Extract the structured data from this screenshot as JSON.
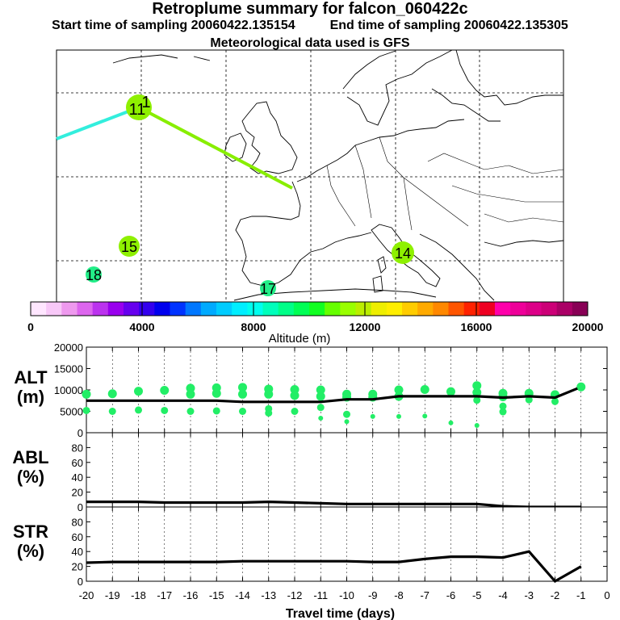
{
  "header": {
    "title": "Retroplume summary for falcon_060422c",
    "start_label": "Start time of sampling 20060422.135154",
    "end_label": "End time of sampling 20060422.135305",
    "met_label": "Meteorological data used is GFS"
  },
  "colorbar": {
    "xlabel": "Altitude (m)",
    "ticks": [
      "0",
      "4000",
      "8000",
      "12000",
      "16000",
      "20000"
    ],
    "colors": [
      "#ffe6ff",
      "#f8c8f8",
      "#ee99ee",
      "#dd66ee",
      "#bb33ee",
      "#9900ee",
      "#6600ee",
      "#3300ee",
      "#0000ee",
      "#0033ff",
      "#0077ff",
      "#00aaff",
      "#00ccff",
      "#00eeff",
      "#00ffee",
      "#00ffbb",
      "#00ff88",
      "#00ff55",
      "#11ff22",
      "#66ff00",
      "#99ff00",
      "#bbee00",
      "#eeee00",
      "#ffee00",
      "#ffcc00",
      "#ffaa00",
      "#ff8800",
      "#ff5500",
      "#ff2200",
      "#ee0022",
      "#ff00aa",
      "#ee0099",
      "#dd0088",
      "#cc0077",
      "#aa0066",
      "#880055"
    ]
  },
  "map": {
    "plume_labels": [
      {
        "label": "11",
        "color": "#8ef000"
      },
      {
        "label": "1",
        "color": "#8ef000"
      },
      {
        "label": "14",
        "color": "#8ef000"
      },
      {
        "label": "15",
        "color": "#8ef000"
      },
      {
        "label": "17",
        "color": "#22ee88"
      },
      {
        "label": "18",
        "color": "#22ee88"
      }
    ],
    "track_colors": [
      "#33eedd",
      "#88ee00"
    ]
  },
  "chart_data": [
    {
      "type": "scatter",
      "panel": "ALT",
      "ylabel": "ALT\n(m)",
      "ylim": [
        0,
        20000
      ],
      "yticks": [
        "0",
        "5000",
        "10000",
        "15000",
        "20000"
      ],
      "xlim": [
        -20,
        0
      ],
      "marker_color": "#22ee66",
      "median_line": {
        "x": [
          -20,
          -19,
          -18,
          -17,
          -16,
          -15,
          -14,
          -13,
          -12,
          -11,
          -10,
          -9,
          -8,
          -7,
          -6,
          -5,
          -4,
          -3,
          -2,
          -1
        ],
        "y": [
          7500,
          7500,
          7500,
          7500,
          7500,
          7500,
          7200,
          7200,
          7200,
          7200,
          7800,
          7800,
          8500,
          8500,
          8500,
          8500,
          8200,
          8500,
          8200,
          10700
        ]
      },
      "scatter_points": [
        {
          "x": -20,
          "y": 9000
        },
        {
          "x": -20,
          "y": 5200
        },
        {
          "x": -19,
          "y": 9100
        },
        {
          "x": -19,
          "y": 5000
        },
        {
          "x": -18,
          "y": 9700
        },
        {
          "x": -18,
          "y": 5300
        },
        {
          "x": -17,
          "y": 9900
        },
        {
          "x": -17,
          "y": 5200
        },
        {
          "x": -16,
          "y": 10400
        },
        {
          "x": -16,
          "y": 9000
        },
        {
          "x": -16,
          "y": 5000
        },
        {
          "x": -15,
          "y": 10500
        },
        {
          "x": -15,
          "y": 9200
        },
        {
          "x": -15,
          "y": 5100
        },
        {
          "x": -14,
          "y": 10600
        },
        {
          "x": -14,
          "y": 9000
        },
        {
          "x": -14,
          "y": 5000
        },
        {
          "x": -13,
          "y": 10200
        },
        {
          "x": -13,
          "y": 9000
        },
        {
          "x": -13,
          "y": 5600
        },
        {
          "x": -13,
          "y": 4600
        },
        {
          "x": -12,
          "y": 10100
        },
        {
          "x": -12,
          "y": 8700
        },
        {
          "x": -12,
          "y": 5000
        },
        {
          "x": -11,
          "y": 10000
        },
        {
          "x": -11,
          "y": 8500
        },
        {
          "x": -11,
          "y": 5900
        },
        {
          "x": -11,
          "y": 3400
        },
        {
          "x": -10,
          "y": 9000
        },
        {
          "x": -10,
          "y": 8300
        },
        {
          "x": -10,
          "y": 4300
        },
        {
          "x": -10,
          "y": 2600
        },
        {
          "x": -9,
          "y": 9000
        },
        {
          "x": -9,
          "y": 8300
        },
        {
          "x": -9,
          "y": 3800
        },
        {
          "x": -8,
          "y": 10000
        },
        {
          "x": -8,
          "y": 8500
        },
        {
          "x": -8,
          "y": 3800
        },
        {
          "x": -7,
          "y": 10100
        },
        {
          "x": -7,
          "y": 3900
        },
        {
          "x": -6,
          "y": 9600
        },
        {
          "x": -6,
          "y": 2300
        },
        {
          "x": -5,
          "y": 11000
        },
        {
          "x": -5,
          "y": 9400
        },
        {
          "x": -5,
          "y": 7600
        },
        {
          "x": -5,
          "y": 1700
        },
        {
          "x": -4,
          "y": 9200
        },
        {
          "x": -4,
          "y": 8400
        },
        {
          "x": -4,
          "y": 6200
        },
        {
          "x": -4,
          "y": 4900
        },
        {
          "x": -3,
          "y": 9200
        },
        {
          "x": -3,
          "y": 7700
        },
        {
          "x": -2,
          "y": 8900
        },
        {
          "x": -2,
          "y": 7300
        },
        {
          "x": -1,
          "y": 10700
        }
      ]
    },
    {
      "type": "line",
      "panel": "ABL",
      "ylabel": "ABL\n(%)",
      "ylim": [
        0,
        100
      ],
      "yticks": [
        "0",
        "20",
        "40",
        "60",
        "80"
      ],
      "xlim": [
        -20,
        0
      ],
      "x": [
        -20,
        -19,
        -18,
        -17,
        -16,
        -15,
        -14,
        -13,
        -12,
        -11,
        -10,
        -9,
        -8,
        -7,
        -6,
        -5,
        -4,
        -3,
        -2,
        -1
      ],
      "y": [
        7,
        7,
        7,
        6,
        6,
        6,
        6,
        7,
        6,
        5,
        4,
        4,
        4,
        4,
        4,
        4,
        1,
        0,
        0,
        0
      ]
    },
    {
      "type": "line",
      "panel": "STR",
      "ylabel": "STR\n(%)",
      "ylim": [
        0,
        100
      ],
      "yticks": [
        "0",
        "20",
        "40",
        "60",
        "80"
      ],
      "xlim": [
        -20,
        0
      ],
      "xticks": [
        "-20",
        "-19",
        "-18",
        "-17",
        "-16",
        "-15",
        "-14",
        "-13",
        "-12",
        "-11",
        "-10",
        "-9",
        "-8",
        "-7",
        "-6",
        "-5",
        "-4",
        "-3",
        "-2",
        "-1",
        "0"
      ],
      "xlabel": "Travel time (days)",
      "x": [
        -20,
        -19,
        -18,
        -17,
        -16,
        -15,
        -14,
        -13,
        -12,
        -11,
        -10,
        -9,
        -8,
        -7,
        -6,
        -5,
        -4,
        -3,
        -2,
        -1
      ],
      "y": [
        25,
        26,
        26,
        26,
        26,
        26,
        27,
        27,
        27,
        27,
        27,
        26,
        26,
        30,
        33,
        33,
        32,
        40,
        0,
        20
      ]
    }
  ]
}
